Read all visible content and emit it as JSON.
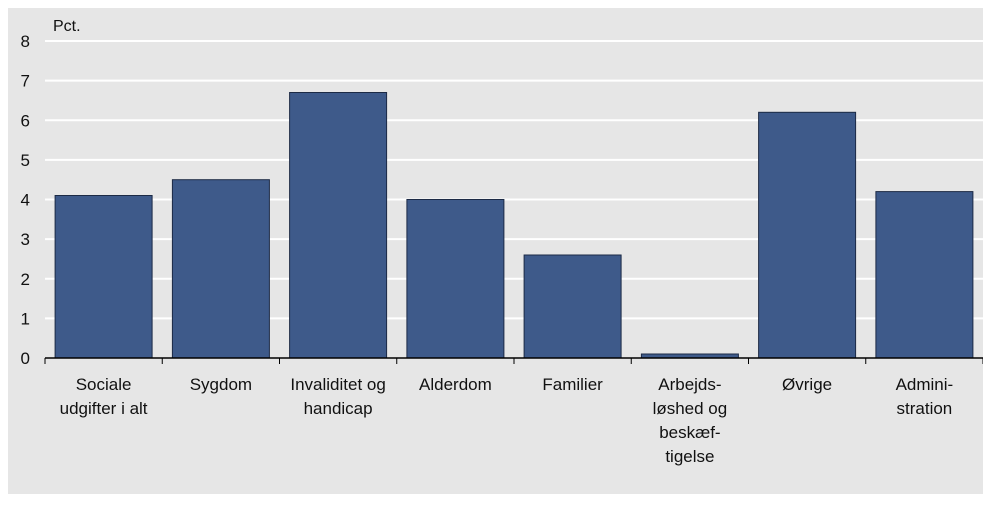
{
  "chart_data": {
    "type": "bar",
    "ylabel": "Pct.",
    "ylim": [
      0,
      8
    ],
    "yticks": [
      0,
      1,
      2,
      3,
      4,
      5,
      6,
      7,
      8
    ],
    "grid": true,
    "categories": [
      [
        "Sociale",
        "udgifter i alt"
      ],
      [
        "Sygdom"
      ],
      [
        "Invaliditet og",
        "handicap"
      ],
      [
        "Alderdom"
      ],
      [
        "Familier"
      ],
      [
        "Arbejds-",
        "løshed og",
        "beskæf-",
        "tigelse"
      ],
      [
        "Øvrige"
      ],
      [
        "Admini-",
        "stration"
      ]
    ],
    "values": [
      4.1,
      4.5,
      6.7,
      4.0,
      2.6,
      0.1,
      6.2,
      4.2
    ],
    "colors": {
      "bar": "#3e5a8a",
      "bar_stroke": "#1c2a45",
      "background": "#e6e6e6",
      "gridline": "#ffffff",
      "axis": "#000000"
    }
  }
}
